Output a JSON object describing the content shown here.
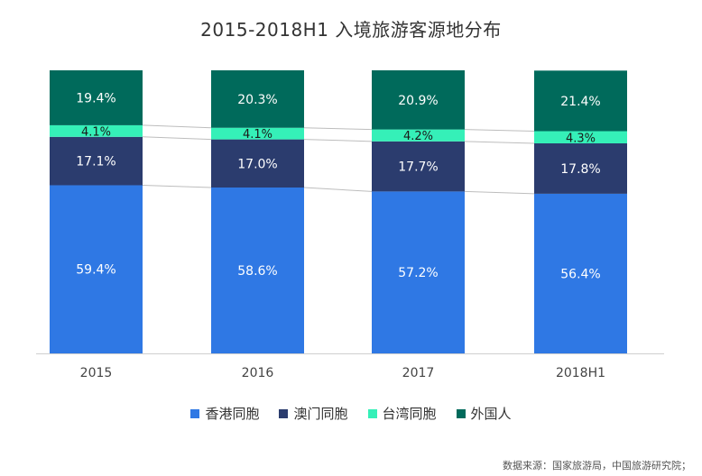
{
  "chart_data": {
    "type": "bar",
    "stacked": true,
    "title": "2015-2018H1 入境旅游客源地分布",
    "categories": [
      "2015",
      "2016",
      "2017",
      "2018H1"
    ],
    "series": [
      {
        "name": "香港同胞",
        "values": [
          59.4,
          58.6,
          57.2,
          56.4
        ],
        "labels": [
          "59.4%",
          "58.6%",
          "57.2%",
          "56.4%"
        ],
        "color": "#2f78e4",
        "label_color": "#ffffff"
      },
      {
        "name": "澳门同胞",
        "values": [
          17.1,
          17.0,
          17.7,
          17.8
        ],
        "labels": [
          "17.1%",
          "17.0%",
          "17.7%",
          "17.8%"
        ],
        "color": "#2b3c6e",
        "label_color": "#ffffff"
      },
      {
        "name": "台湾同胞",
        "values": [
          4.1,
          4.1,
          4.2,
          4.3
        ],
        "labels": [
          "4.1%",
          "4.1%",
          "4.2%",
          "4.3%"
        ],
        "color": "#35f0b8",
        "label_color": "#1a1a1a"
      },
      {
        "name": "外国人",
        "values": [
          19.4,
          20.3,
          20.9,
          21.4
        ],
        "labels": [
          "19.4%",
          "20.3%",
          "20.9%",
          "21.4%"
        ],
        "color": "#006a5b",
        "label_color": "#ffffff"
      }
    ],
    "ylim": [
      0,
      100
    ],
    "xlabel": "",
    "ylabel": "",
    "legend_position": "bottom",
    "grid": false
  },
  "source": "数据来源：国家旅游局，中国旅游研究院；"
}
